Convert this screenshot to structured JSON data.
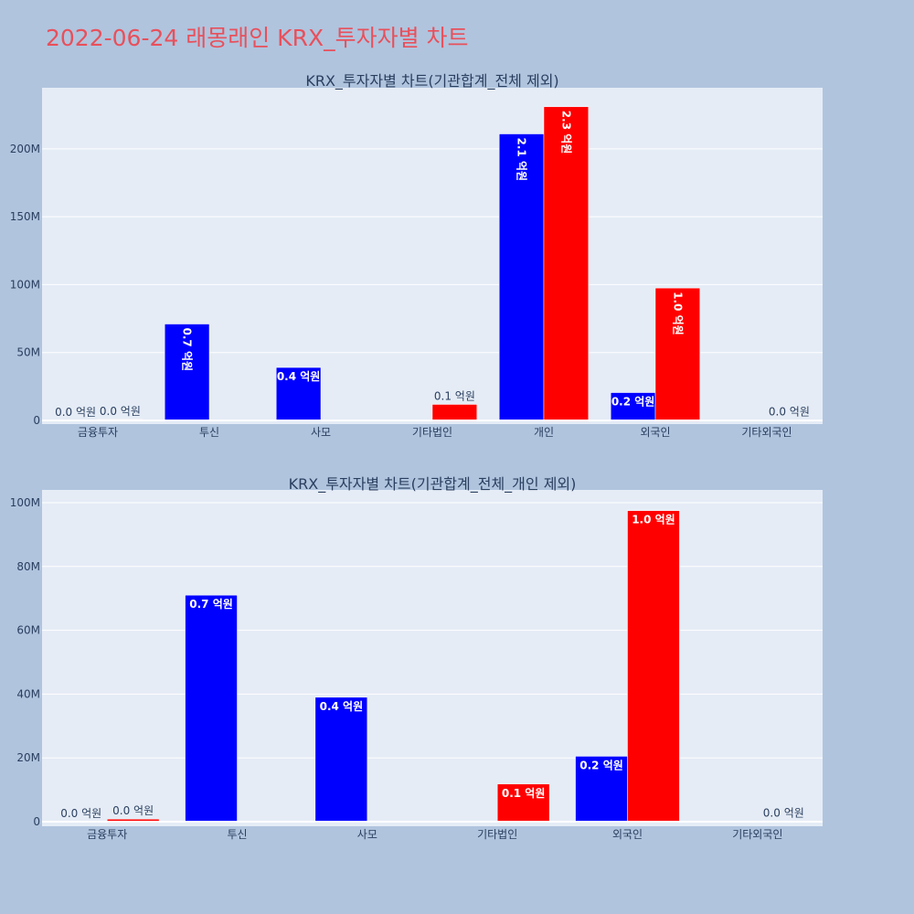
{
  "page": {
    "title": "2022-06-24 래몽래인 KRX_투자자별 차트",
    "background": "#b0c4de",
    "title_color": "#e8505b"
  },
  "chart_data": [
    {
      "type": "bar",
      "title": "KRX_투자자별 차트(기관합계_전체 제외)",
      "categories": [
        "금융투자",
        "투신",
        "사모",
        "기타법인",
        "개인",
        "외국인",
        "기타외국인"
      ],
      "series": [
        {
          "color": "#0000ff",
          "values": [
            0,
            71000000,
            39000000,
            0,
            211000000,
            20500000,
            0
          ],
          "labels": [
            "0.0 억원",
            "0.7 억원",
            "0.4 억원",
            "",
            "2.1 억원",
            "0.2 억원",
            ""
          ]
        },
        {
          "color": "#ff0000",
          "values": [
            800000,
            0,
            0,
            11800000,
            231000000,
            97500000,
            200000
          ],
          "labels": [
            "0.0 억원",
            "",
            "",
            "0.1 억원",
            "2.3 억원",
            "1.0 억원",
            "0.0 억원"
          ]
        }
      ],
      "yticks": [
        0,
        50000000,
        100000000,
        150000000,
        200000000
      ],
      "ytick_labels": [
        "0",
        "50M",
        "100M",
        "150M",
        "200M"
      ],
      "ylim": [
        0,
        245000000
      ],
      "grid": true
    },
    {
      "type": "bar",
      "title": "KRX_투자자별 차트(기관합계_전체_개인 제외)",
      "categories": [
        "금융투자",
        "투신",
        "사모",
        "기타법인",
        "외국인",
        "기타외국인"
      ],
      "series": [
        {
          "color": "#0000ff",
          "values": [
            0,
            71000000,
            39000000,
            0,
            20500000,
            0
          ],
          "labels": [
            "0.0 억원",
            "0.7 억원",
            "0.4 억원",
            "",
            "0.2 억원",
            ""
          ]
        },
        {
          "color": "#ff0000",
          "values": [
            800000,
            0,
            0,
            11800000,
            97500000,
            200000
          ],
          "labels": [
            "0.0 억원",
            "",
            "",
            "0.1 억원",
            "1.0 억원",
            "0.0 억원"
          ]
        }
      ],
      "yticks": [
        0,
        20000000,
        40000000,
        60000000,
        80000000,
        100000000
      ],
      "ytick_labels": [
        "0",
        "20M",
        "40M",
        "60M",
        "80M",
        "100M"
      ],
      "ylim": [
        0,
        104000000
      ],
      "grid": true
    }
  ]
}
